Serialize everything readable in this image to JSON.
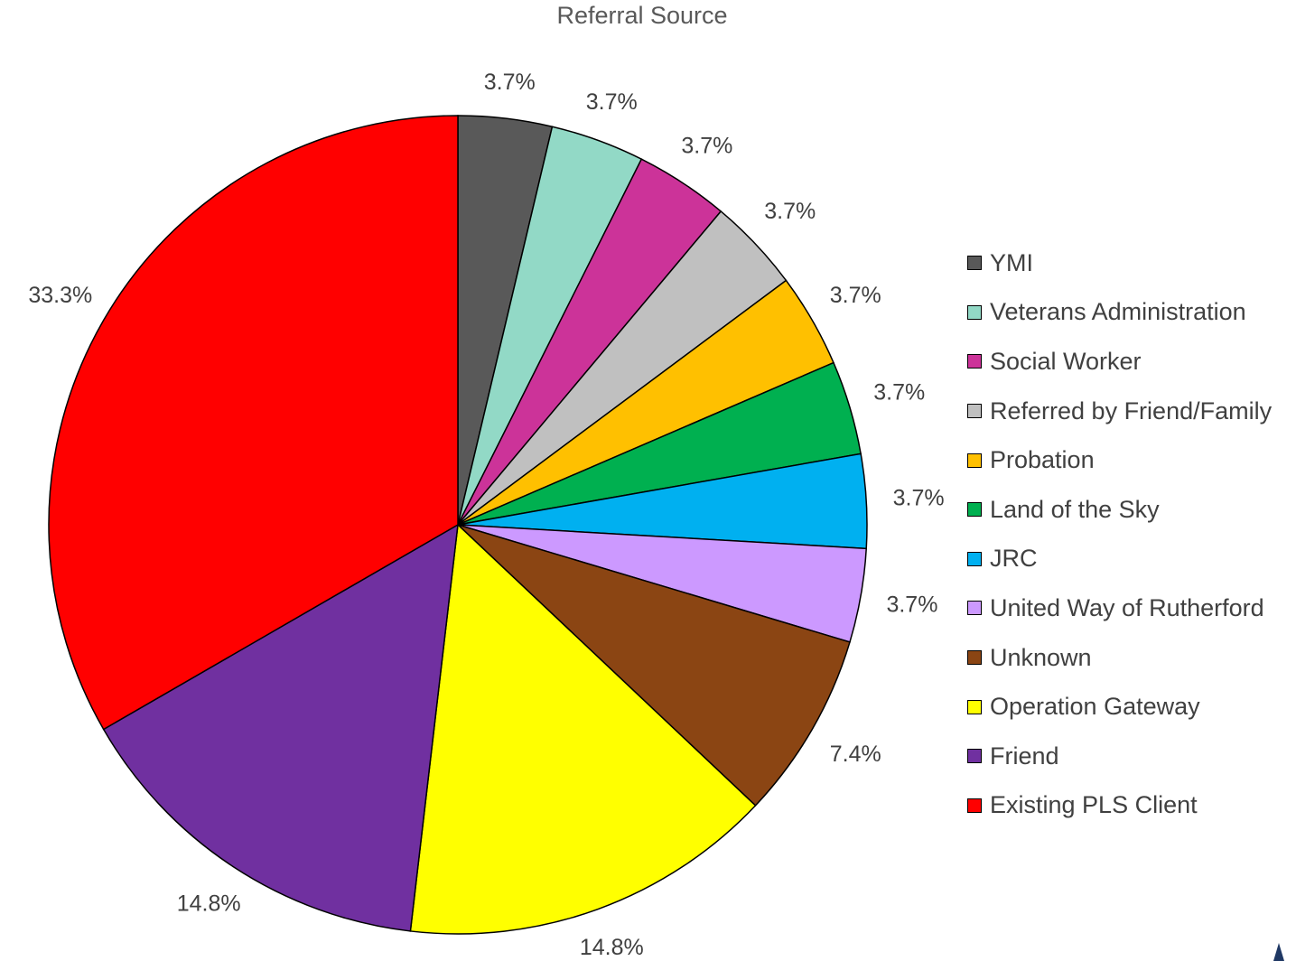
{
  "chart_data": {
    "type": "pie",
    "title": "Referral Source",
    "legend_position": "right",
    "start_angle_deg": 0,
    "direction": "clockwise",
    "slices": [
      {
        "label": "YMI",
        "value": 3.7,
        "data_label": "3.7%",
        "color": "#595959"
      },
      {
        "label": "Veterans Administration",
        "value": 3.7,
        "data_label": "3.7%",
        "color": "#92d9c6"
      },
      {
        "label": "Social Worker",
        "value": 3.7,
        "data_label": "3.7%",
        "color": "#cc3399"
      },
      {
        "label": "Referred by Friend/Family",
        "value": 3.7,
        "data_label": "3.7%",
        "color": "#c0c0c0"
      },
      {
        "label": "Probation",
        "value": 3.7,
        "data_label": "3.7%",
        "color": "#ffc000"
      },
      {
        "label": "Land of the Sky",
        "value": 3.7,
        "data_label": "3.7%",
        "color": "#00b050"
      },
      {
        "label": "JRC",
        "value": 3.7,
        "data_label": "3.7%",
        "color": "#00b0f0"
      },
      {
        "label": "United Way of Rutherford",
        "value": 3.7,
        "data_label": "3.7%",
        "color": "#cc99ff"
      },
      {
        "label": "Unknown",
        "value": 7.4,
        "data_label": "7.4%",
        "color": "#8b4513"
      },
      {
        "label": "Operation Gateway",
        "value": 14.8,
        "data_label": "14.8%",
        "color": "#ffff00"
      },
      {
        "label": "Friend",
        "value": 14.8,
        "data_label": "14.8%",
        "color": "#7030a0"
      },
      {
        "label": "Existing PLS Client",
        "value": 33.3,
        "data_label": "33.3%",
        "color": "#ff0000"
      }
    ]
  }
}
